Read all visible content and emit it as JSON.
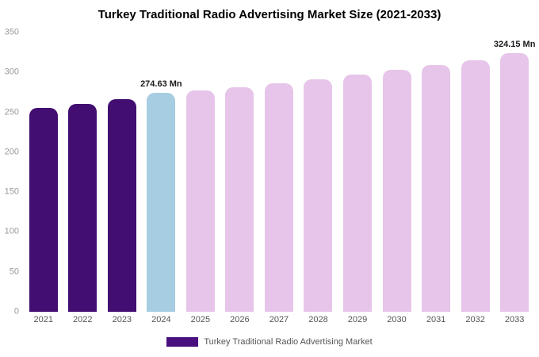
{
  "title": "Turkey Traditional Radio Advertising Market Size (2021-2033)",
  "legend": {
    "label": "Turkey Traditional Radio Advertising Market",
    "swatch_color": "#4a1080"
  },
  "colors": {
    "historical": "#420e72",
    "current": "#a7cde2",
    "forecast": "#e7c5ea"
  },
  "chart_data": {
    "type": "bar",
    "title": "Turkey Traditional Radio Advertising Market Size (2021-2033)",
    "xlabel": "",
    "ylabel": "",
    "unit": "Mn",
    "categories": [
      "2021",
      "2022",
      "2023",
      "2024",
      "2025",
      "2026",
      "2027",
      "2028",
      "2029",
      "2030",
      "2031",
      "2032",
      "2033"
    ],
    "values": [
      256,
      261,
      266,
      274.63,
      277.5,
      281.5,
      286.5,
      291.5,
      297.5,
      303.5,
      309,
      315.5,
      324.15
    ],
    "styles": [
      "historical",
      "historical",
      "historical",
      "current",
      "forecast",
      "forecast",
      "forecast",
      "forecast",
      "forecast",
      "forecast",
      "forecast",
      "forecast",
      "forecast"
    ],
    "point_labels": {
      "2024": "274.63 Mn",
      "2033": "324.15 Mn"
    },
    "ylim": [
      0,
      350
    ],
    "yticks": [
      0,
      50,
      100,
      150,
      200,
      250,
      300,
      350
    ],
    "grid": false,
    "legend_position": "bottom"
  }
}
